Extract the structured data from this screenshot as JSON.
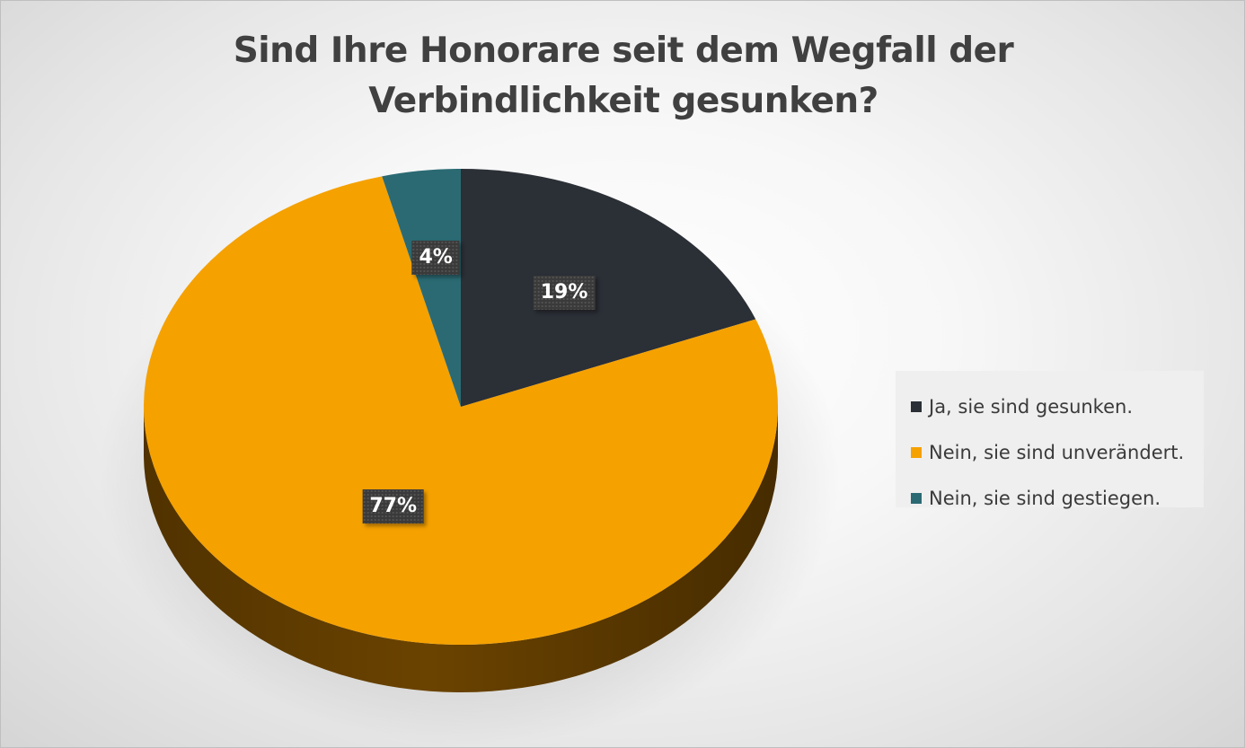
{
  "chart_data": {
    "type": "pie",
    "title": "Sind Ihre Honorare seit dem Wegfall der Verbindlichkeit gesunken?",
    "title_lines": [
      "Sind Ihre Honorare seit dem Wegfall der",
      "Verbindlichkeit gesunken?"
    ],
    "style": "3d-pie",
    "legend_position": "right",
    "slices": [
      {
        "label": "Ja, sie sind gesunken.",
        "value": 19,
        "display": "19%",
        "color": "#2b2f36",
        "side_color": "#1a1d22"
      },
      {
        "label": "Nein, sie sind unverändert.",
        "value": 77,
        "display": "77%",
        "color": "#f5a100",
        "side_color": "#6b4300"
      },
      {
        "label": "Nein, sie sind gestiegen.",
        "value": 4,
        "display": "4%",
        "color": "#2b6a73",
        "side_color": "#17393e"
      }
    ]
  }
}
